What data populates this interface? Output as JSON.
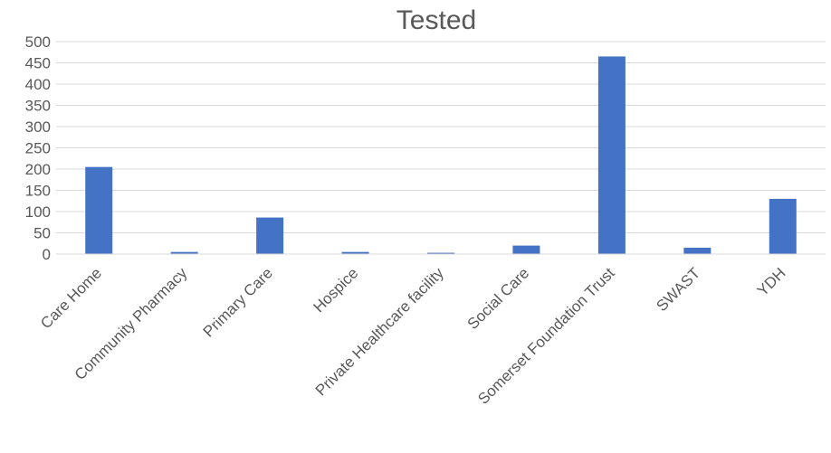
{
  "chart_data": {
    "type": "bar",
    "title": "Tested",
    "xlabel": "",
    "ylabel": "",
    "categories": [
      "Care Home",
      "Community Pharmacy",
      "Primary Care",
      "Hospice",
      "Private Healthcare facility",
      "Social Care",
      "Somerset Foundation Trust",
      "SWAST",
      "YDH"
    ],
    "values": [
      205,
      5,
      86,
      5,
      3,
      20,
      465,
      15,
      130
    ],
    "ylim": [
      0,
      500
    ],
    "yticks": [
      "0",
      "50",
      "100",
      "150",
      "200",
      "250",
      "300",
      "350",
      "400",
      "450",
      "500"
    ],
    "grid": true,
    "legend": "none",
    "colors": {
      "bar": "#4472C4",
      "grid": "#D9D9D9",
      "axis": "#D9D9D9",
      "text": "#595959"
    }
  }
}
